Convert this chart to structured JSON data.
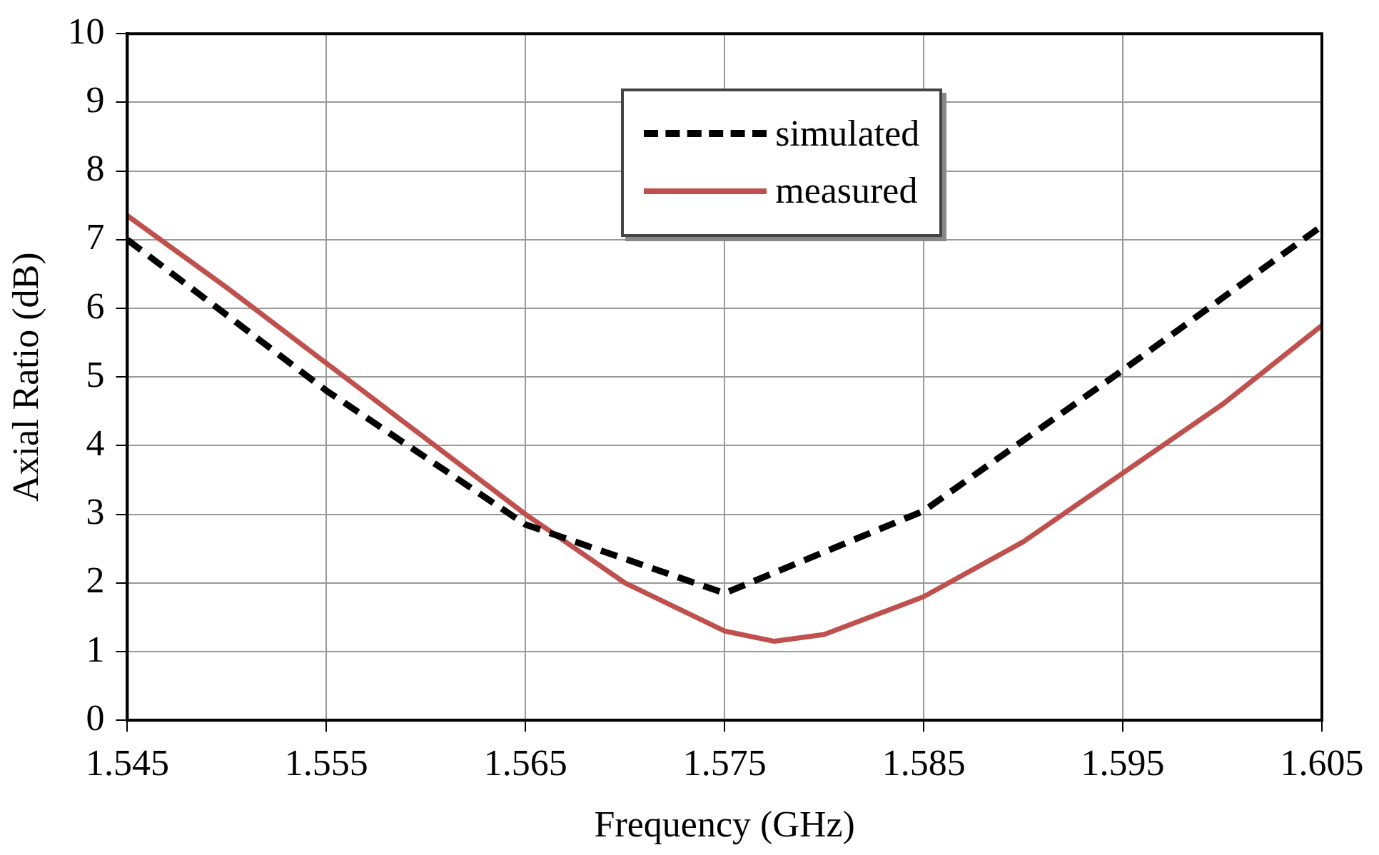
{
  "chart_data": {
    "type": "line",
    "xlabel": "Frequency (GHz)",
    "ylabel": "Axial Ratio (dB)",
    "xlim": [
      1.545,
      1.605
    ],
    "xticks": [
      1.545,
      1.555,
      1.565,
      1.575,
      1.585,
      1.595,
      1.605
    ],
    "ylim": [
      0,
      10
    ],
    "yticks": [
      0,
      1,
      2,
      3,
      4,
      5,
      6,
      7,
      8,
      9,
      10
    ],
    "grid": true,
    "legend": "top",
    "marker": "none",
    "series": [
      {
        "name": "simulated",
        "color": "#000000",
        "line_style": "dashed",
        "x": [
          1.545,
          1.555,
          1.565,
          1.575,
          1.585,
          1.595,
          1.605
        ],
        "values": [
          7.0,
          4.8,
          2.85,
          1.85,
          3.05,
          5.1,
          7.2
        ]
      },
      {
        "name": "measured",
        "color": "#c0504d",
        "line_style": "solid",
        "x": [
          1.545,
          1.55,
          1.555,
          1.56,
          1.565,
          1.57,
          1.575,
          1.5775,
          1.58,
          1.585,
          1.59,
          1.595,
          1.6,
          1.605
        ],
        "values": [
          7.35,
          6.3,
          5.2,
          4.1,
          3.0,
          2.0,
          1.3,
          1.15,
          1.25,
          1.8,
          2.6,
          3.6,
          4.6,
          5.75
        ]
      }
    ]
  }
}
